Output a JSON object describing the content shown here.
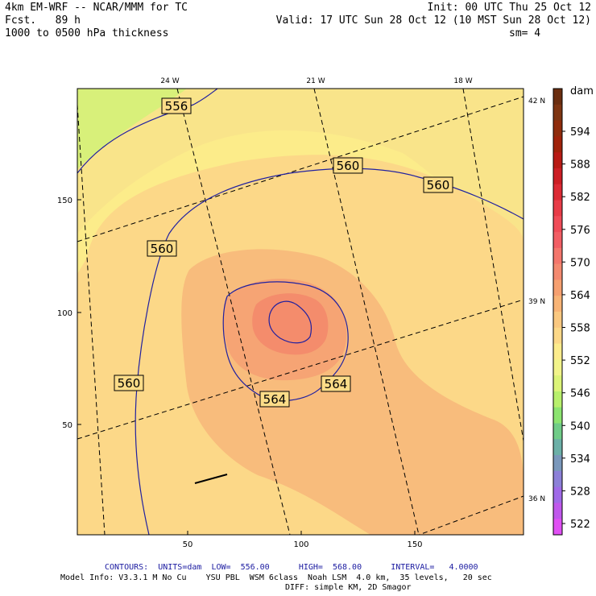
{
  "header": {
    "title": "4km EM-WRF -- NCAR/MMM for TC",
    "init": "Init: 00 UTC Thu 25 Oct 12",
    "fcst": "Fcst.   89 h",
    "valid": "Valid: 17 UTC Sun 28 Oct 12 (10 MST Sun 28 Oct 12)",
    "field": "1000 to 0500 hPa thickness",
    "smoothing": "sm= 4"
  },
  "map": {
    "x_ticks": [
      "50",
      "100",
      "150"
    ],
    "y_ticks": [
      "50",
      "100",
      "150"
    ],
    "lon_labels": [
      "24 W",
      "21 W",
      "18 W"
    ],
    "lat_labels": [
      "42 N",
      "39 N",
      "36 N"
    ],
    "contour_labels": [
      "556",
      "560",
      "560",
      "560",
      "560",
      "564",
      "564"
    ],
    "center_fill_color": "#f4886c"
  },
  "colorbar": {
    "units": "dam",
    "labels": [
      "594",
      "588",
      "582",
      "576",
      "570",
      "564",
      "558",
      "552",
      "546",
      "540",
      "534",
      "528",
      "522"
    ],
    "colors": [
      "#6b2e10",
      "#7e3512",
      "#8f2c0c",
      "#a0220a",
      "#b81a14",
      "#cc1e24",
      "#dc2a34",
      "#e83c48",
      "#f04c58",
      "#f25e64",
      "#f4766c",
      "#f48a70",
      "#f6a070",
      "#f8b476",
      "#fac880",
      "#fcd888",
      "#fcec8c",
      "#f2f48a",
      "#dcf478",
      "#b8f06c",
      "#8ce470",
      "#70cc88",
      "#6cb0a8",
      "#7a98bc",
      "#8c80d8",
      "#a06ae8",
      "#c058ec",
      "#e050f4"
    ]
  },
  "footer": {
    "contours": "CONTOURS:  UNITS=dam  LOW=  556.00      HIGH=  568.00      INTERVAL=   4.0000",
    "model_info": "Model Info: V3.3.1 M No Cu    YSU PBL  WSM 6class  Noah LSM  4.0 km,  35 levels,   20 sec",
    "diff": "DIFF: simple KM, 2D Smagor"
  }
}
